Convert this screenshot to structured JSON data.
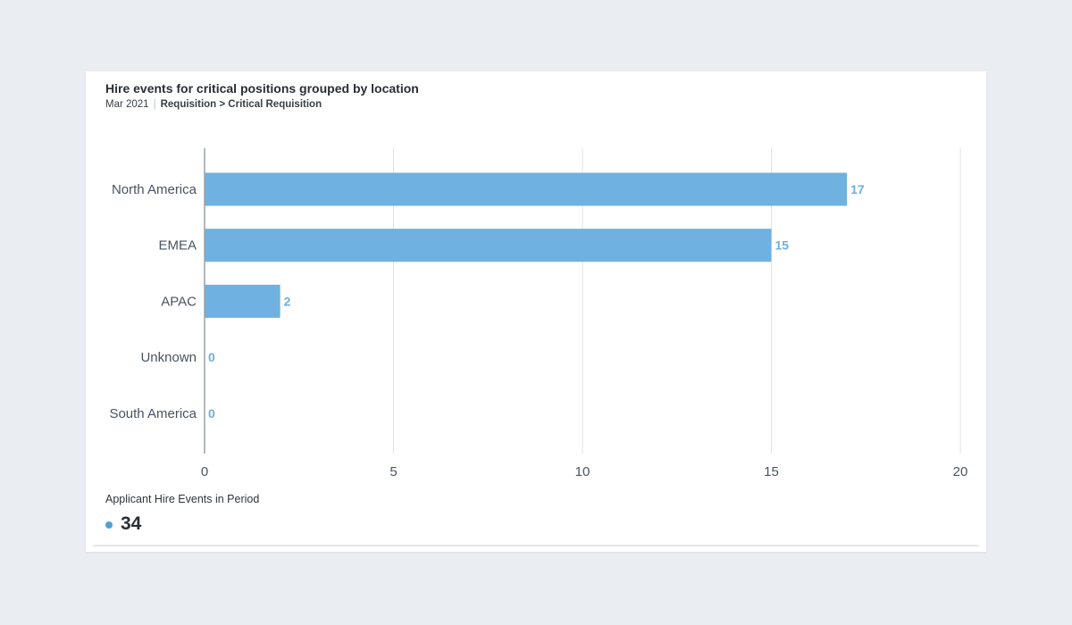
{
  "card": {
    "title": "Hire events for critical positions grouped by location",
    "subtitle_date": "Mar 2021",
    "subtitle_separator": "|",
    "subtitle_path": "Requisition > Critical Requisition"
  },
  "metric": {
    "label": "Applicant Hire Events in Period",
    "value": "34",
    "dot_color": "#4d9fd9"
  },
  "colors": {
    "bar": "#6fb1e0",
    "bar_label": "#6cb0df",
    "gridline": "#dfe3e8",
    "axis_line": "#9aa1ab"
  },
  "chart_data": {
    "type": "bar",
    "orientation": "horizontal",
    "categories": [
      "North America",
      "EMEA",
      "APAC",
      "Unknown",
      "South America"
    ],
    "values": [
      17,
      15,
      2,
      0,
      0
    ],
    "xlim": [
      0,
      20
    ],
    "xticks": [
      0,
      5,
      10,
      15,
      20
    ],
    "grid": true,
    "legend": "none",
    "data_labels": true
  }
}
